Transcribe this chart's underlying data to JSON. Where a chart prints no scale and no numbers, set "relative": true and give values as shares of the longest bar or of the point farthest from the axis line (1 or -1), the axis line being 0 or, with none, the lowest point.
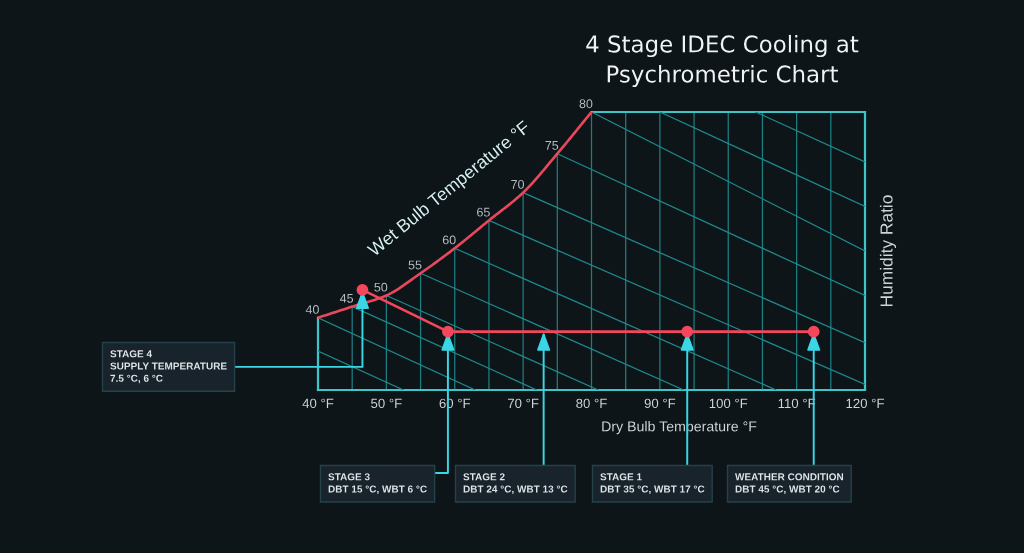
{
  "chart_data": {
    "type": "line",
    "title": "4 Stage IDEC Cooling at\nPsychrometric Chart",
    "xlabel": "Dry Bulb Temperature °F",
    "ylabel": "Humidity Ratio",
    "relative": true,
    "xlim": [
      40,
      120
    ],
    "xticks": [
      {
        "value": 40,
        "label": "40 °F"
      },
      {
        "value": 45,
        "label": null
      },
      {
        "value": 50,
        "label": "50 °F"
      },
      {
        "value": 55,
        "label": null
      },
      {
        "value": 60,
        "label": "60 °F"
      },
      {
        "value": 65,
        "label": null
      },
      {
        "value": 70,
        "label": "70 °F"
      },
      {
        "value": 75,
        "label": null
      },
      {
        "value": 80,
        "label": "80 °F"
      },
      {
        "value": 85,
        "label": null
      },
      {
        "value": 90,
        "label": "90 °F"
      },
      {
        "value": 95,
        "label": null
      },
      {
        "value": 100,
        "label": "100 °F"
      },
      {
        "value": 105,
        "label": null
      },
      {
        "value": 110,
        "label": "110 °F"
      },
      {
        "value": 115,
        "label": null
      },
      {
        "value": 120,
        "label": "120 °F"
      }
    ],
    "grid": "x",
    "series": [
      {
        "name": "Wet Bulb Temperature °F",
        "color": "#e8475c",
        "x": [
          40,
          45,
          50,
          55,
          60,
          65,
          70,
          75,
          80
        ],
        "values": [
          0.26,
          0.3,
          0.34,
          0.42,
          0.51,
          0.61,
          0.71,
          0.85,
          1
        ]
      },
      {
        "color": "#f4475c",
        "marker": "circle",
        "x": [
          46.5,
          59,
          94,
          112.5
        ],
        "values": [
          0.36,
          0.21,
          0.21,
          0.21
        ]
      },
      {
        "color": "#1e8a8d",
        "x": [
          40,
          52.5
        ],
        "values": [
          0.14,
          0
        ]
      },
      {
        "color": "#1e8a8d",
        "x": [
          40,
          63
        ],
        "values": [
          0.26,
          0
        ]
      },
      {
        "color": "#1e8a8d",
        "x": [
          45,
          72
        ],
        "values": [
          0.3,
          0
        ]
      },
      {
        "color": "#1e8a8d",
        "x": [
          50,
          81
        ],
        "values": [
          0.34,
          0
        ]
      },
      {
        "color": "#1e8a8d",
        "x": [
          55,
          93.5
        ],
        "values": [
          0.42,
          0
        ]
      },
      {
        "color": "#1e8a8d",
        "x": [
          60,
          107
        ],
        "values": [
          0.51,
          0
        ]
      },
      {
        "color": "#1e8a8d",
        "x": [
          65,
          120
        ],
        "values": [
          0.61,
          0.02
        ]
      },
      {
        "color": "#1e8a8d",
        "x": [
          70,
          120
        ],
        "values": [
          0.71,
          0.17
        ]
      },
      {
        "color": "#1e8a8d",
        "x": [
          75,
          120
        ],
        "values": [
          0.85,
          0.34
        ]
      },
      {
        "color": "#1e8a8d",
        "x": [
          80,
          120
        ],
        "values": [
          1,
          0.5
        ]
      },
      {
        "color": "#1e8a8d",
        "x": [
          90,
          120
        ],
        "values": [
          1,
          0.66
        ]
      },
      {
        "color": "#1e8a8d",
        "x": [
          104,
          120
        ],
        "values": [
          1,
          0.82
        ]
      }
    ],
    "annotations": [
      {
        "text": "STAGE 4\nSUPPLY TEMPERATURE\n7.5 °C, 6 °C",
        "x": 46.5,
        "y": 0.36
      },
      {
        "text": "STAGE 3\nDBT 15 °C, WBT 6 °C",
        "x": 59,
        "y": 0.21
      },
      {
        "text": "STAGE 2\nDBT 24 °C, WBT 13 °C",
        "x": 73,
        "y": 0.21
      },
      {
        "text": "STAGE 1\nDBT 35 °C, WBT 17 °C",
        "x": 94,
        "y": 0.21
      },
      {
        "text": "WEATHER CONDITION\nDBT 45 °C, WBT 20 °C",
        "x": 112.5,
        "y": 0.21
      },
      {
        "text": "40",
        "x": 40,
        "y": 0.26
      },
      {
        "text": "45",
        "x": 45,
        "y": 0.3
      },
      {
        "text": "50",
        "x": 50,
        "y": 0.34
      },
      {
        "text": "55",
        "x": 55,
        "y": 0.42
      },
      {
        "text": "60",
        "x": 60,
        "y": 0.51
      },
      {
        "text": "65",
        "x": 65,
        "y": 0.61
      },
      {
        "text": "70",
        "x": 70,
        "y": 0.71
      },
      {
        "text": "75",
        "x": 75,
        "y": 0.85
      },
      {
        "text": "80",
        "x": 80,
        "y": 1
      }
    ]
  }
}
